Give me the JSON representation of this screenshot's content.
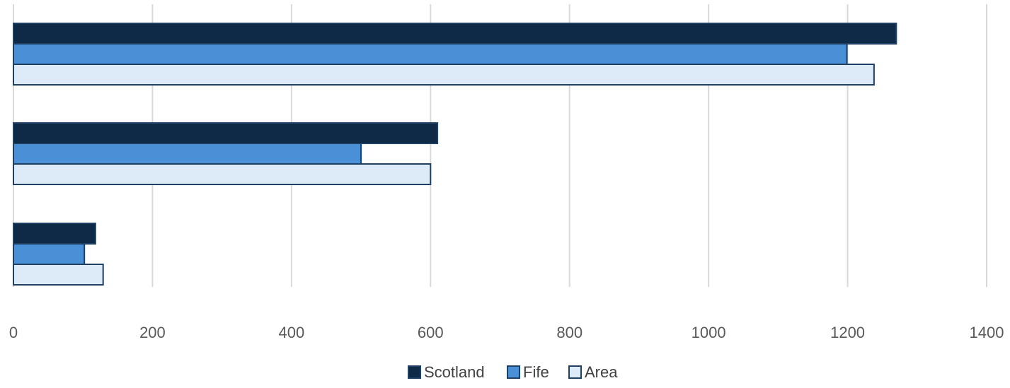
{
  "chart_data": {
    "type": "bar",
    "orientation": "horizontal",
    "categories": [
      "",
      "",
      ""
    ],
    "series": [
      {
        "name": "Scotland",
        "values": [
          1270,
          610,
          118
        ],
        "color": "#0f2a47"
      },
      {
        "name": "Fife",
        "values": [
          1199,
          500,
          102
        ],
        "color": "#4a90d6"
      },
      {
        "name": "Area",
        "values": [
          1238,
          600,
          129
        ],
        "color": "#ddeaf7"
      }
    ],
    "bar_outline_color": "#1f3f63",
    "gridline_color": "#d9d9d9",
    "title": "",
    "xlabel": "",
    "ylabel": "",
    "xlim": [
      0,
      1400
    ],
    "xticks": [
      0,
      200,
      400,
      600,
      800,
      1000,
      1200,
      1400
    ],
    "grid": true,
    "legend": "bottom"
  }
}
